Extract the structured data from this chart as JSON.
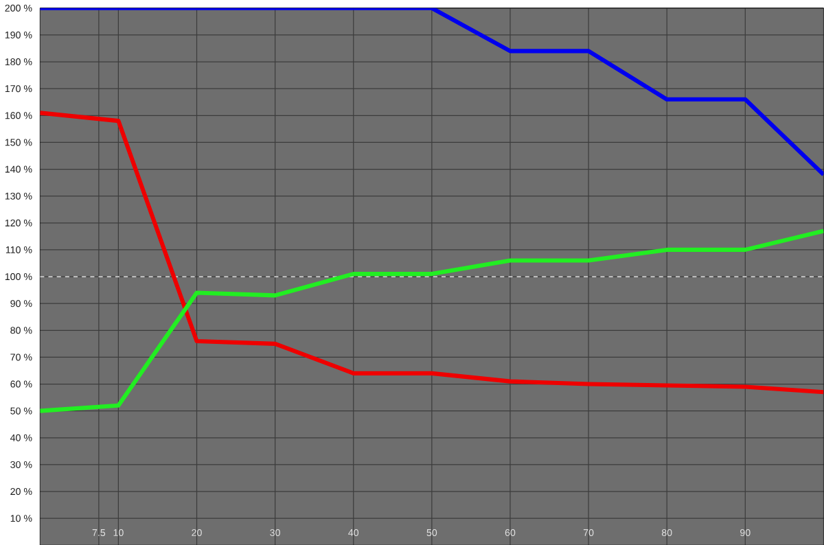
{
  "chart_data": {
    "type": "line",
    "x": [
      0,
      10,
      20,
      30,
      40,
      50,
      60,
      70,
      80,
      90,
      100
    ],
    "series": [
      {
        "color": "#ee0000",
        "values": [
          161,
          158,
          76,
          75,
          64,
          64,
          61,
          60,
          59.5,
          59,
          57
        ]
      },
      {
        "color": "#22ee22",
        "values": [
          50,
          52,
          94,
          93,
          101,
          101,
          106,
          106,
          110,
          110,
          117
        ]
      },
      {
        "color": "#0000ee",
        "values": [
          200,
          200,
          200,
          200,
          200,
          200,
          184,
          184,
          166,
          166,
          138
        ]
      }
    ],
    "xlim": [
      0,
      100
    ],
    "ylim": [
      0,
      200
    ],
    "xticks": [
      7.5,
      10,
      20,
      30,
      40,
      50,
      60,
      70,
      80,
      90
    ],
    "yticks": [
      {
        "value": 10,
        "label": "10 %"
      },
      {
        "value": 20,
        "label": "20 %"
      },
      {
        "value": 30,
        "label": "30 %"
      },
      {
        "value": 40,
        "label": "40 %"
      },
      {
        "value": 50,
        "label": "50 %"
      },
      {
        "value": 60,
        "label": "60 %"
      },
      {
        "value": 70,
        "label": "70 %"
      },
      {
        "value": 80,
        "label": "80 %"
      },
      {
        "value": 90,
        "label": "90 %"
      },
      {
        "value": 100,
        "label": "100 %"
      },
      {
        "value": 110,
        "label": "110 %"
      },
      {
        "value": 120,
        "label": "120 %"
      },
      {
        "value": 130,
        "label": "130 %"
      },
      {
        "value": 140,
        "label": "140 %"
      },
      {
        "value": 150,
        "label": "150 %"
      },
      {
        "value": 160,
        "label": "160 %"
      },
      {
        "value": 170,
        "label": "170 %"
      },
      {
        "value": 180,
        "label": "180 %"
      },
      {
        "value": 190,
        "label": "190 %"
      },
      {
        "value": 200,
        "label": "200 %"
      }
    ],
    "grid": true,
    "line_style": "solid",
    "marker": "none",
    "ref_lines": [
      {
        "axis": "y",
        "value": 100,
        "color": "#ffffff",
        "line_style": "dashed"
      }
    ]
  }
}
